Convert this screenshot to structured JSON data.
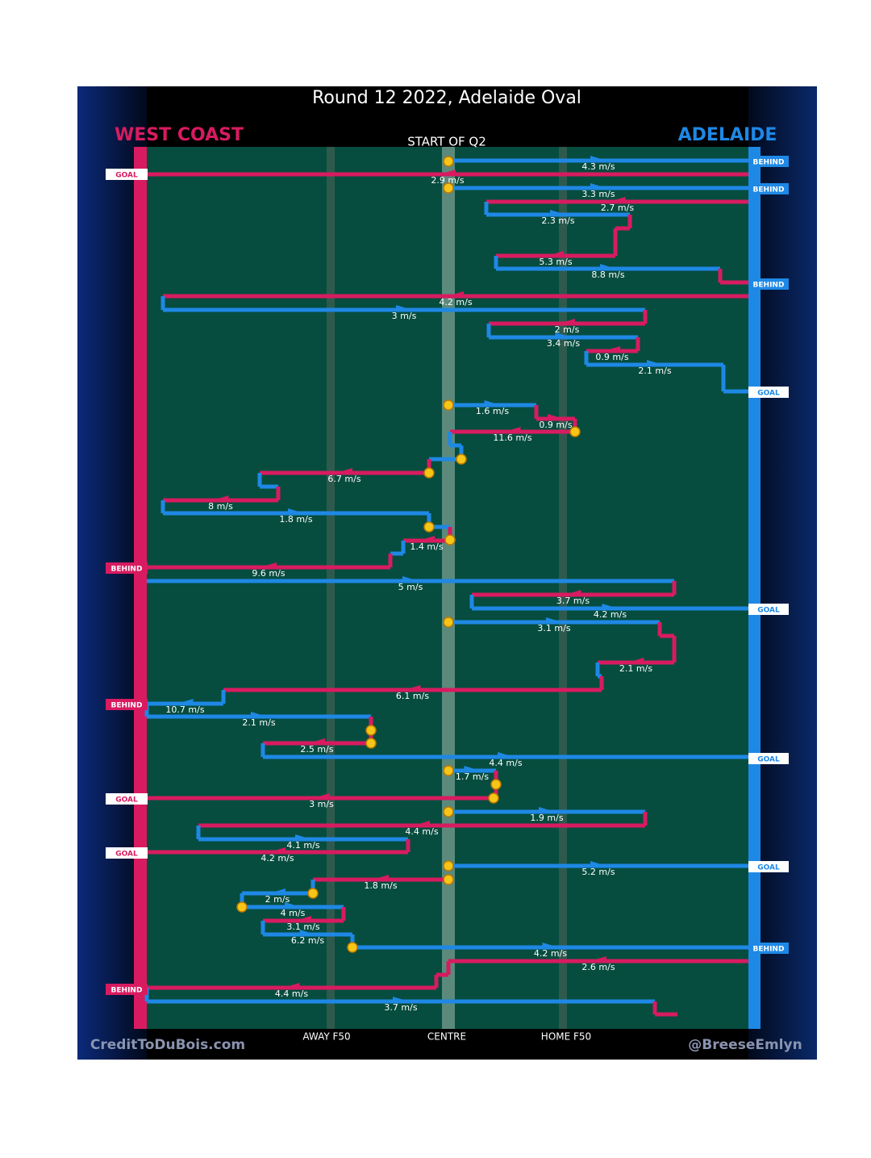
{
  "header": {
    "title": "Round 12 2022, Adelaide Oval",
    "left_team": "WEST COAST",
    "right_team": "ADELAIDE",
    "period": "START OF Q2"
  },
  "speeds": [
    "4.3 m/s",
    "2.9 m/s",
    "3.3 m/s",
    "2.7 m/s",
    "2.3 m/s",
    "5.3 m/s",
    "8.8 m/s",
    "4.2 m/s",
    "3 m/s",
    "2 m/s",
    "3.4 m/s",
    "0.9 m/s",
    "2.1 m/s",
    "1.6 m/s",
    "0.9 m/s",
    "11.6 m/s",
    "6.7 m/s",
    "8 m/s",
    "1.8 m/s",
    "1.4 m/s",
    "9.6 m/s",
    "5 m/s",
    "3.7 m/s",
    "4.2 m/s",
    "3.1 m/s",
    "2.1 m/s",
    "6.1 m/s",
    "10.7 m/s",
    "2.1 m/s",
    "2.5 m/s",
    "4.4 m/s",
    "1.7 m/s",
    "3 m/s",
    "1.9 m/s",
    "4.4 m/s",
    "4.1 m/s",
    "4.2 m/s",
    "5.2 m/s",
    "1.8 m/s",
    "2 m/s",
    "4 m/s",
    "3.1 m/s",
    "6.2 m/s",
    "4.2 m/s",
    "2.6 m/s",
    "4.4 m/s",
    "3.7 m/s"
  ],
  "outcomes": [
    "BEHIND",
    "GOAL",
    "BEHIND",
    "BEHIND",
    "GOAL",
    "BEHIND",
    "GOAL",
    "BEHIND",
    "GOAL",
    "GOAL",
    "GOAL",
    "GOAL",
    "BEHIND",
    "BEHIND"
  ],
  "field_labels": [
    "AWAY F50",
    "CENTRE",
    "HOME F50"
  ],
  "footer": {
    "left": "CreditToDuBois.com",
    "right": "@BreeseEmlyn"
  }
}
